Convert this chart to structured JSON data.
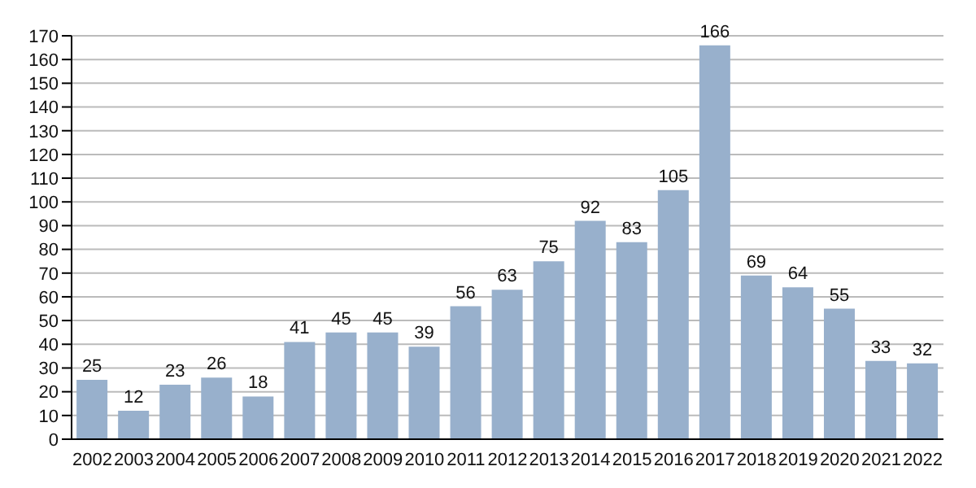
{
  "chart_data": {
    "type": "bar",
    "categories": [
      "2002",
      "2003",
      "2004",
      "2005",
      "2006",
      "2007",
      "2008",
      "2009",
      "2010",
      "2011",
      "2012",
      "2013",
      "2014",
      "2015",
      "2016",
      "2017",
      "2018",
      "2019",
      "2020",
      "2021",
      "2022"
    ],
    "values": [
      25,
      12,
      23,
      26,
      18,
      41,
      45,
      45,
      39,
      56,
      63,
      75,
      92,
      83,
      105,
      166,
      69,
      64,
      55,
      33,
      32
    ],
    "color": "#98b0cc",
    "ylim": [
      0,
      170
    ],
    "yticks": [
      0,
      10,
      20,
      30,
      40,
      50,
      60,
      70,
      80,
      90,
      100,
      110,
      120,
      130,
      140,
      150,
      160,
      170
    ],
    "grid": "y",
    "data_labels": true
  }
}
